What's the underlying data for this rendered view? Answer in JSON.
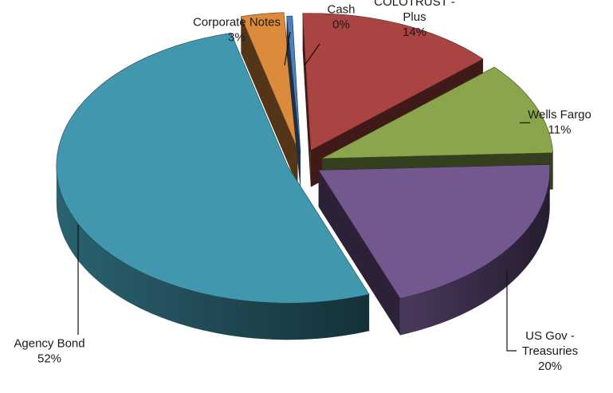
{
  "chart_data": {
    "type": "pie",
    "style": "3d-exploded",
    "legend": "none",
    "slices": [
      {
        "category": "COLOTRUST - Plus",
        "label_lines": [
          "COLOTRUST -",
          "Plus"
        ],
        "pct_label": "14%",
        "value": 14,
        "color": "#A94442"
      },
      {
        "category": "Wells Fargo",
        "label_lines": [
          "Wells Fargo"
        ],
        "pct_label": "11%",
        "value": 11,
        "color": "#8AA54B"
      },
      {
        "category": "US Gov - Treasuries",
        "label_lines": [
          "US Gov -",
          "Treasuries"
        ],
        "pct_label": "20%",
        "value": 20,
        "color": "#73578F"
      },
      {
        "category": "Agency Bond",
        "label_lines": [
          "Agency Bond"
        ],
        "pct_label": "52%",
        "value": 52,
        "color": "#4198AE"
      },
      {
        "category": "Corporate Notes",
        "label_lines": [
          "Corporate Notes"
        ],
        "pct_label": "3%",
        "value": 3,
        "color": "#DC8B3C"
      },
      {
        "category": "Cash",
        "label_lines": [
          "Cash"
        ],
        "pct_label": "0%",
        "value": 0.4,
        "color": "#4E7FB8"
      }
    ]
  }
}
